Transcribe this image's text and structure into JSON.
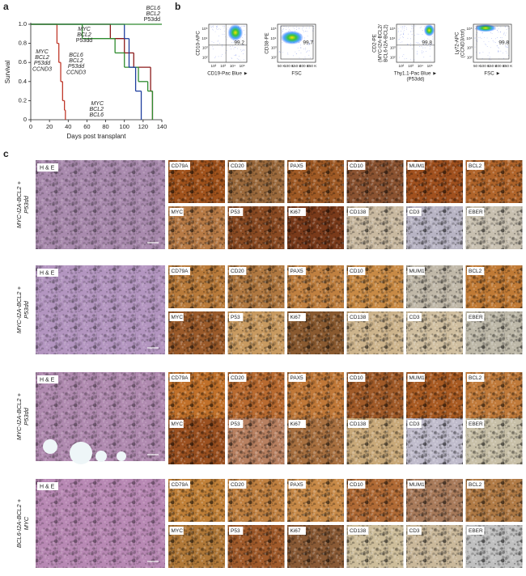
{
  "panel_letters": [
    "a",
    "b",
    "c"
  ],
  "chart_data": {
    "type": "line",
    "step": true,
    "xlabel": "Days post transplant",
    "ylabel": "Survival",
    "xlim": [
      0,
      140
    ],
    "ylim": [
      0,
      1
    ],
    "xticks": [
      0,
      20,
      40,
      60,
      80,
      100,
      120,
      140
    ],
    "yticks": [
      0,
      0.2,
      0.4,
      0.6,
      0.8,
      {
        "value": 1,
        "label": "1.0"
      }
    ],
    "series": [
      {
        "name_lines": [
          "MYC",
          "BCL2",
          "P53dd",
          "CCND3"
        ],
        "color": "#c0392b",
        "x": [
          0,
          28,
          30,
          32,
          34,
          36,
          37
        ],
        "values": [
          1,
          0.8,
          0.6,
          0.4,
          0.2,
          0.1,
          0
        ]
      },
      {
        "name_lines": [
          "MYC",
          "BCL2",
          "P53dd"
        ],
        "color": "#8b1a1a",
        "x": [
          0,
          85,
          100,
          110,
          128,
          130
        ],
        "values": [
          1,
          0.85,
          0.7,
          0.55,
          0.3,
          0
        ]
      },
      {
        "name_lines": [
          "BCL6",
          "BCL2",
          "P53dd",
          "CCND3"
        ],
        "color": "#2e8b2e",
        "x": [
          0,
          55,
          90,
          100,
          115,
          125,
          130
        ],
        "values": [
          1,
          0.85,
          0.7,
          0.55,
          0.4,
          0.3,
          0
        ]
      },
      {
        "name_lines": [
          "MYC",
          "BCL2",
          "BCL6"
        ],
        "color": "#1f3f9f",
        "x": [
          0,
          100,
          105,
          112,
          118
        ],
        "values": [
          1,
          0.85,
          0.55,
          0.3,
          0
        ]
      },
      {
        "name_lines": [
          "BCL6",
          "BCL2",
          "P53dd"
        ],
        "color": "#2e8b2e",
        "x": [
          0,
          140
        ],
        "values": [
          1,
          1
        ]
      }
    ]
  },
  "flow_plots": [
    {
      "ylabel_lines": [
        "CD10-APC"
      ],
      "xlabel_lines": [
        "CD19-Pac Blue ►"
      ],
      "yticks": [
        "10²",
        "10³",
        "10⁴",
        "10⁵"
      ],
      "xticks": [
        "10²",
        "10³",
        "10⁴",
        "10⁵"
      ],
      "gate_value": "99.2"
    },
    {
      "ylabel_lines": [
        "CD38-PE"
      ],
      "xlabel_lines": [
        "FSC"
      ],
      "yticks": [
        "10²",
        "10³",
        "10⁴",
        "10⁵"
      ],
      "xticks": [
        "50 K",
        "100 K",
        "150 K",
        "200 K",
        "250 K"
      ],
      "gate_value": "99.7"
    },
    {
      "ylabel_lines": [
        "CD2-PE",
        "(MYC-I2A-BCL2/",
        "BCL6-I2A-BCL2)"
      ],
      "xlabel_lines": [
        "Thy1.1-Pac Blue ►",
        "(P53dd)"
      ],
      "yticks": [
        "10²",
        "10³",
        "10⁴",
        "10⁵"
      ],
      "xticks": [
        "10²",
        "10³",
        "10⁴",
        "10⁵"
      ],
      "gate_value": "99.8"
    },
    {
      "ylabel_lines": [
        "Ly72-APC",
        "(CCND3/ctrl)"
      ],
      "xlabel_lines": [
        "FSC ►"
      ],
      "yticks": [
        "10²",
        "10³",
        "10⁴",
        "10⁵"
      ],
      "xticks": [
        "50 K",
        "100 K",
        "150 K",
        "200 K",
        "250 K"
      ],
      "gate_value": "99.8"
    }
  ],
  "histology": {
    "rows": [
      {
        "label_lines": [
          "MYC-I2A-BCL2 +",
          "P53dd"
        ],
        "he_label": "H & E",
        "he_color": "#a98aae",
        "tiles": [
          {
            "label": "CD79A",
            "color": "#a0521c"
          },
          {
            "label": "CD20",
            "color": "#9c6a3c"
          },
          {
            "label": "PAX5",
            "color": "#a05a25"
          },
          {
            "label": "CD10",
            "color": "#8a5230"
          },
          {
            "label": "MUM1",
            "color": "#a0501e"
          },
          {
            "label": "BCL2",
            "color": "#b0642a"
          },
          {
            "label": "MYC",
            "color": "#b77a45"
          },
          {
            "label": "P53",
            "color": "#8a4a22"
          },
          {
            "label": "Ki67",
            "color": "#7a3a1a"
          },
          {
            "label": "CD138",
            "color": "#c9b9a0"
          },
          {
            "label": "CD3",
            "color": "#b8b4c4"
          },
          {
            "label": "EBER",
            "color": "#c8c0b0"
          }
        ]
      },
      {
        "label_lines": [
          "MYC-I2A-BCL2 +",
          "P53dd"
        ],
        "he_label": "H & E",
        "he_color": "#b395c0",
        "tiles": [
          {
            "label": "CD79A",
            "color": "#b87a3a"
          },
          {
            "label": "CD20",
            "color": "#b07840"
          },
          {
            "label": "PAX5",
            "color": "#c08040"
          },
          {
            "label": "CD10",
            "color": "#c88a45"
          },
          {
            "label": "MUM1",
            "color": "#c0b8a8"
          },
          {
            "label": "BCL2",
            "color": "#c07a35"
          },
          {
            "label": "MYC",
            "color": "#9a5a2a"
          },
          {
            "label": "P53",
            "color": "#c89a60"
          },
          {
            "label": "Ki67",
            "color": "#8a5a30"
          },
          {
            "label": "CD138",
            "color": "#cdb48c"
          },
          {
            "label": "CD3",
            "color": "#d0bfa0"
          },
          {
            "label": "EBER",
            "color": "#bdb8a8"
          }
        ]
      },
      {
        "label_lines": [
          "MYC-I2A-BCL2 +",
          "P53dd"
        ],
        "he_label": "H & E",
        "he_color": "#b08ab0",
        "tiles": [
          {
            "label": "CD79A",
            "color": "#c0702a"
          },
          {
            "label": "CD20",
            "color": "#b86a30"
          },
          {
            "label": "PAX5",
            "color": "#c07838"
          },
          {
            "label": "CD10",
            "color": "#a05a28"
          },
          {
            "label": "MUM1",
            "color": "#a85a22"
          },
          {
            "label": "BCL2",
            "color": "#c07a3a"
          },
          {
            "label": "MYC",
            "color": "#9a5020"
          },
          {
            "label": "P53",
            "color": "#b88060"
          },
          {
            "label": "Ki67",
            "color": "#a87040"
          },
          {
            "label": "CD138",
            "color": "#c8a878"
          },
          {
            "label": "CD3",
            "color": "#c0bccc"
          },
          {
            "label": "EBER",
            "color": "#c8c0a8"
          }
        ]
      },
      {
        "label_lines": [
          "BCL6-I2A-BCL2 +",
          "MYC"
        ],
        "he_label": "H & E",
        "he_color": "#b888b4",
        "tiles": [
          {
            "label": "CD79A",
            "color": "#c08038"
          },
          {
            "label": "CD20",
            "color": "#c08040"
          },
          {
            "label": "PAX5",
            "color": "#c88a48"
          },
          {
            "label": "CD10",
            "color": "#b06a35"
          },
          {
            "label": "MUM1",
            "color": "#a87a5a"
          },
          {
            "label": "BCL2",
            "color": "#b07a45"
          },
          {
            "label": "MYC",
            "color": "#b07838"
          },
          {
            "label": "P53",
            "color": "#a05a2a"
          },
          {
            "label": "Ki67",
            "color": "#8a5a35"
          },
          {
            "label": "CD138",
            "color": "#cdbd9a"
          },
          {
            "label": "CD3",
            "color": "#cab89a"
          },
          {
            "label": "EBER",
            "color": "#c0c0c0"
          }
        ]
      }
    ]
  }
}
